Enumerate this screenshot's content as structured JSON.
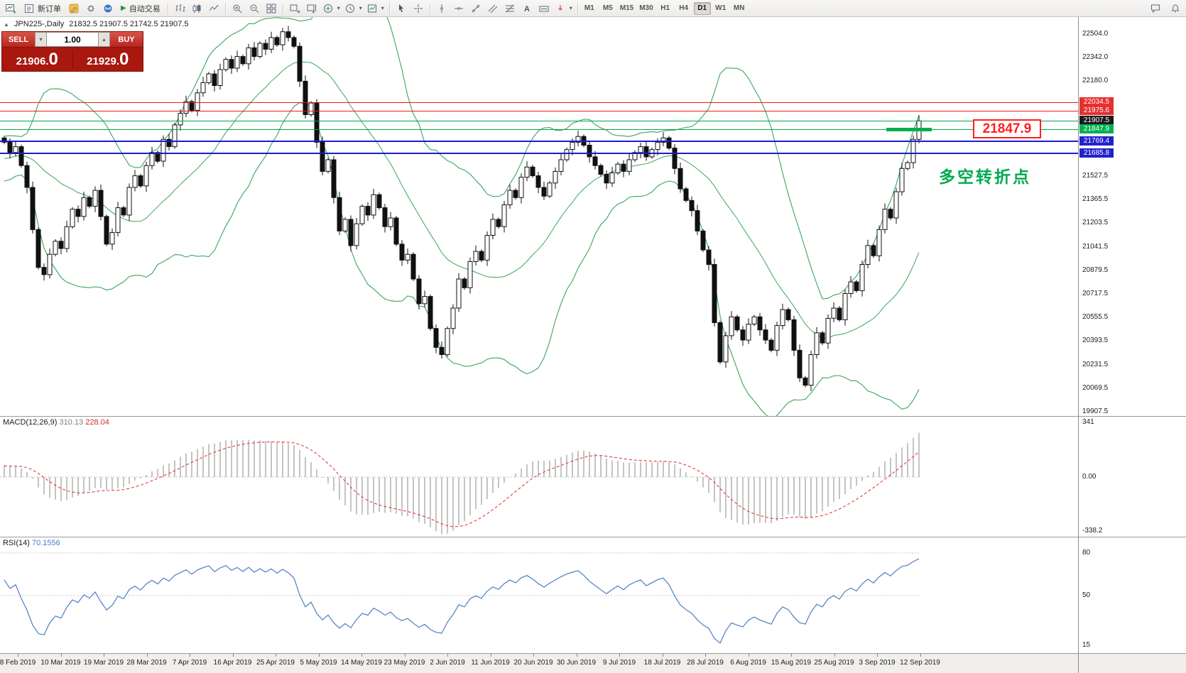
{
  "toolbar": {
    "new_order_label": "新订单",
    "auto_trading_label": "自动交易",
    "timeframes": [
      "M1",
      "M5",
      "M15",
      "M30",
      "H1",
      "H4",
      "D1",
      "W1",
      "MN"
    ],
    "active_timeframe": "D1",
    "icons": {
      "new_chart": "chart-plus",
      "new_order": "order-form",
      "metaeditor": "pencil-editor",
      "options": "gear",
      "community": "mql5-m",
      "auto_trading": "play-triangle",
      "bar_chart": "ohlc-bars",
      "candles": "candlesticks",
      "line_chart": "polyline",
      "zoom_in": "magnifier-plus",
      "zoom_out": "magnifier-minus",
      "tile_windows": "grid-4",
      "auto_scroll": "chart-arrow-right",
      "chart_shift": "chart-shift-arrow",
      "indicators": "circle-green-plus",
      "periods": "clock",
      "templates": "chart-template",
      "cursor": "pointer-arrow",
      "crosshair": "cross",
      "vline": "vertical-line",
      "hline": "horizontal-line",
      "trendline": "diagonal-line",
      "channel": "parallel-lines",
      "fibonacci": "fibo-levels",
      "text": "letter-A",
      "label": "text-label",
      "arrows": "red-arrow",
      "chat": "speech-bubble",
      "news": "bell"
    }
  },
  "chart": {
    "symbol_label": "JPN225-,Daily",
    "ohlc": "21832.5 21907.5 21742.5 21907.5",
    "trade_panel": {
      "sell_label": "SELL",
      "buy_label": "BUY",
      "volume": "1.00",
      "bid_main": "21906.",
      "bid_last": "0",
      "ask_main": "21929.",
      "ask_last": "0"
    },
    "callout": {
      "text": "21847.9",
      "price": 21847.9,
      "x": 1370
    },
    "annotation": {
      "text": "多空转折点",
      "x": 1322,
      "anchor_price": 21685.8
    }
  },
  "indicators": {
    "macd": {
      "name": "MACD(12,26,9)",
      "main_value": "310.13",
      "signal_value": "228.04",
      "axis_labels": [
        "341",
        "0.00",
        "-338.2"
      ]
    },
    "rsi": {
      "name": "RSI(14)",
      "value": "70.1556",
      "axis_labels": [
        "80",
        "50",
        "15"
      ]
    }
  },
  "time_axis": {
    "labels": [
      "8 Feb 2019",
      "10 Mar 2019",
      "19 Mar 2019",
      "28 Mar 2019",
      "7 Apr 2019",
      "16 Apr 2019",
      "25 Apr 2019",
      "5 May 2019",
      "14 May 2019",
      "23 May 2019",
      "2 Jun 2019",
      "11 Jun 2019",
      "20 Jun 2019",
      "30 Jun 2019",
      "9 Jul 2019",
      "18 Jul 2019",
      "28 Jul 2019",
      "6 Aug 2019",
      "15 Aug 2019",
      "25 Aug 2019",
      "3 Sep 2019",
      "12 Sep 2019"
    ]
  },
  "chart_data": {
    "type": "candlestick",
    "symbol": "JPN225-",
    "timeframe": "Daily",
    "ylim": [
      19907.5,
      22504.0
    ],
    "price_axis_labels": [
      22504.0,
      22342.0,
      22180.0,
      21527.5,
      21365.5,
      21203.5,
      21041.5,
      20879.5,
      20717.5,
      20555.5,
      20393.5,
      20231.5,
      20069.5,
      19907.5
    ],
    "hlines": [
      {
        "price": 22034.5,
        "label": "22034.5",
        "color": "#f01515",
        "tag_bg": "#e53030",
        "width": 1
      },
      {
        "price": 21975.6,
        "label": "21975.6",
        "color": "#f01515",
        "tag_bg": "#e53030",
        "width": 1
      },
      {
        "price": 21907.5,
        "label": "21907.5",
        "color": "#00a94f",
        "tag_bg": "#1a1a1a",
        "width": 1
      },
      {
        "price": 21847.9,
        "label": "21847.9",
        "color": "#00a94f",
        "tag_bg": "#00b050",
        "width": 1
      },
      {
        "price": 21769.4,
        "label": "21769.4",
        "color": "#1b1bd0",
        "tag_bg": "#2222cc",
        "width": 2
      },
      {
        "price": 21685.8,
        "label": "21685.8",
        "color": "#1b1bd0",
        "tag_bg": "#2222cc",
        "width": 2
      }
    ],
    "highlight_segment": {
      "price": 21847.9,
      "x": 1248,
      "w": 64
    },
    "bollinger": {
      "period": 20,
      "deviation": 2,
      "color": "#3aa65c"
    },
    "closes": [
      21760,
      21690,
      21730,
      21600,
      21450,
      21160,
      20900,
      20850,
      20990,
      21080,
      21030,
      21180,
      21300,
      21250,
      21380,
      21320,
      21430,
      21250,
      21060,
      21140,
      21310,
      21260,
      21450,
      21530,
      21460,
      21600,
      21690,
      21630,
      21780,
      21730,
      21880,
      21960,
      22040,
      21980,
      22100,
      22170,
      22230,
      22150,
      22260,
      22330,
      22270,
      22350,
      22300,
      22410,
      22350,
      22440,
      22400,
      22480,
      22430,
      22520,
      22480,
      22420,
      22180,
      21950,
      22030,
      21760,
      21560,
      21640,
      21380,
      21150,
      21230,
      21050,
      21200,
      21320,
      21260,
      21400,
      21310,
      21180,
      21240,
      21060,
      20950,
      20990,
      20820,
      20650,
      20700,
      20480,
      20350,
      20300,
      20480,
      20620,
      20820,
      20760,
      20940,
      21010,
      20950,
      21120,
      21230,
      21180,
      21330,
      21430,
      21380,
      21520,
      21590,
      21530,
      21450,
      21390,
      21480,
      21560,
      21640,
      21710,
      21760,
      21800,
      21740,
      21660,
      21600,
      21540,
      21480,
      21550,
      21610,
      21560,
      21640,
      21690,
      21730,
      21660,
      21710,
      21760,
      21790,
      21720,
      21580,
      21440,
      21360,
      21290,
      21150,
      21020,
      20920,
      20520,
      20250,
      20430,
      20560,
      20470,
      20400,
      20510,
      20560,
      20470,
      20400,
      20330,
      20500,
      20610,
      20540,
      20330,
      20140,
      20090,
      20300,
      20450,
      20380,
      20550,
      20620,
      20540,
      20720,
      20800,
      20740,
      20920,
      21050,
      20980,
      21160,
      21300,
      21240,
      21420,
      21580,
      21620,
      21780,
      21907.5
    ]
  }
}
